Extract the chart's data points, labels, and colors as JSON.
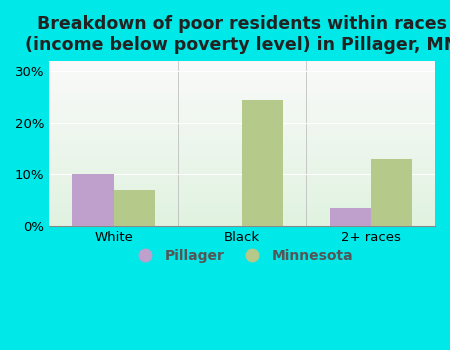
{
  "title": "Breakdown of poor residents within races\n(income below poverty level) in Pillager, MN",
  "categories": [
    "White",
    "Black",
    "2+ races"
  ],
  "pillager_values": [
    10.0,
    0.0,
    3.5
  ],
  "minnesota_values": [
    7.0,
    24.5,
    13.0
  ],
  "pillager_color": "#bf9fcc",
  "minnesota_color": "#b5c98a",
  "background_outer": "#00e8e8",
  "background_inner_tl": "#d6f0d6",
  "background_inner_br": "#e8f5e8",
  "ylim": [
    0,
    32
  ],
  "yticks": [
    0,
    10,
    20,
    30
  ],
  "ytick_labels": [
    "0%",
    "10%",
    "20%",
    "30%"
  ],
  "bar_width": 0.32,
  "legend_labels": [
    "Pillager",
    "Minnesota"
  ],
  "title_fontsize": 12.5,
  "tick_fontsize": 9.5,
  "legend_fontsize": 10
}
